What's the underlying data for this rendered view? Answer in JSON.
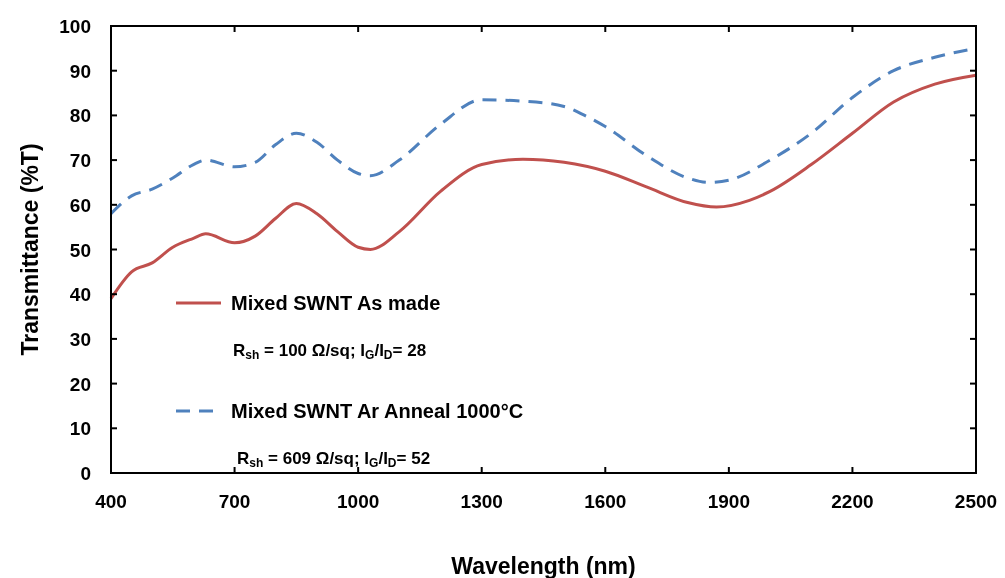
{
  "chart_data": {
    "type": "line",
    "xlabel": "Wavelength (nm)",
    "ylabel": "Transmittance (%T)",
    "xlim": [
      400,
      2500
    ],
    "xticks": [
      400,
      700,
      1000,
      1300,
      1600,
      1900,
      2200,
      2500
    ],
    "ylim": [
      0,
      100
    ],
    "yticks": [
      0,
      10,
      20,
      30,
      40,
      50,
      60,
      70,
      80,
      90,
      100
    ],
    "legend": "bottom left",
    "grid": false,
    "series": [
      {
        "name": "Mixed SWNT As made",
        "color": "#c0504d",
        "line_style": "solid",
        "x": [
          400,
          450,
          500,
          550,
          600,
          630,
          700,
          750,
          800,
          850,
          900,
          950,
          1000,
          1030,
          1100,
          1200,
          1300,
          1400,
          1500,
          1600,
          1700,
          1800,
          1870,
          1950,
          2000,
          2100,
          2200,
          2300,
          2400,
          2500
        ],
        "values": [
          39,
          45,
          47,
          50.5,
          52.5,
          53.5,
          51.5,
          53,
          57,
          60.3,
          58,
          54,
          50.5,
          50,
          54,
          63,
          69,
          70.2,
          69.5,
          67.5,
          64,
          60.5,
          59.5,
          61,
          63,
          69,
          76,
          83,
          87,
          89
        ]
      },
      {
        "name": "Mixed SWNT Ar Anneal 1000°C",
        "color": "#4f81bd",
        "line_style": "dashed",
        "x": [
          400,
          450,
          500,
          550,
          600,
          630,
          700,
          750,
          800,
          850,
          900,
          950,
          1000,
          1030,
          1100,
          1200,
          1300,
          1400,
          1500,
          1550,
          1600,
          1700,
          1800,
          1850,
          1900,
          2000,
          2100,
          2200,
          2300,
          2400,
          2500
        ],
        "values": [
          58,
          62,
          63.5,
          66,
          69,
          70,
          68.5,
          69.5,
          73.5,
          76,
          74,
          70,
          67,
          66.5,
          70,
          78,
          83.5,
          83.2,
          82,
          80,
          77.5,
          71,
          66,
          65,
          65.5,
          70,
          76,
          84,
          90,
          93,
          95
        ]
      }
    ],
    "annotations": [
      "R$_{sh}$ = 100 Ω/sq;  I$_{G}$/I$_{D}$= 28",
      "R$_{sh}$ = 609 Ω/sq; I$_{G}$/I$_{D}$= 52"
    ]
  }
}
